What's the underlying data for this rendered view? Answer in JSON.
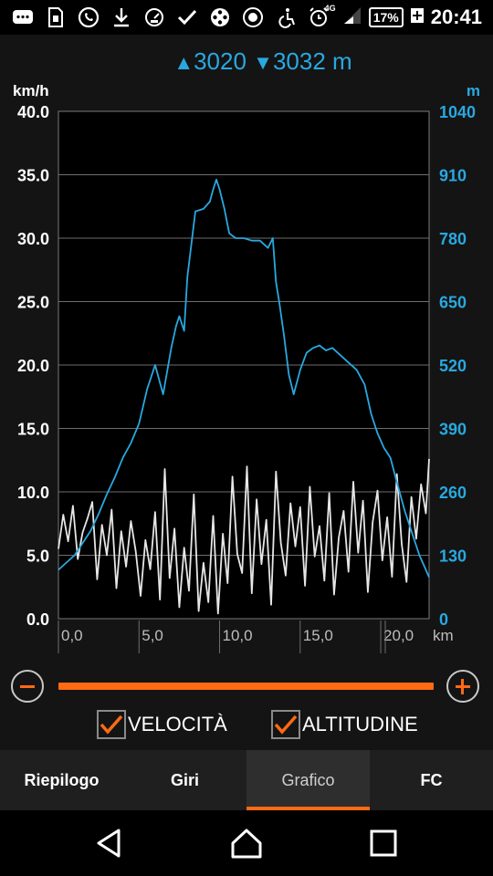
{
  "status_bar": {
    "notification_icons": [
      "chat-icon",
      "sim-icon",
      "whatsapp-icon",
      "download-icon",
      "speedometer-icon",
      "check-icon",
      "film-reel-icon",
      "gauge-icon",
      "accessibility-icon",
      "alarm-icon"
    ],
    "network": "4G",
    "battery": "17%",
    "time": "20:41"
  },
  "header": {
    "ascent_symbol": "▲",
    "ascent": "3020",
    "descent_symbol": "▼",
    "descent": "3032 m"
  },
  "colors": {
    "speed": "#e6e6e6",
    "altitude": "#29a8e0",
    "accent": "#ff6a13",
    "plot_bg": "#000000"
  },
  "chart_data": {
    "type": "line",
    "left_axis_unit": "km/h",
    "right_axis_unit": "m",
    "x_unit": "km",
    "left_ticks": [
      "0.0",
      "5.0",
      "10.0",
      "15.0",
      "20.0",
      "25.0",
      "30.0",
      "35.0",
      "40.0"
    ],
    "right_ticks": [
      "0",
      "130",
      "260",
      "390",
      "520",
      "650",
      "780",
      "910",
      "1040"
    ],
    "x_ticks": [
      "0,0",
      "5,0",
      "10,0",
      "15,0",
      "20,0"
    ],
    "ylim_left": [
      0,
      40
    ],
    "ylim_right": [
      0,
      1040
    ],
    "xlim": [
      0,
      23
    ],
    "grid": true,
    "series": [
      {
        "name": "VELOCITÀ",
        "axis": "left",
        "x": [
          0.0,
          0.3,
          0.6,
          0.9,
          1.2,
          1.5,
          1.8,
          2.1,
          2.4,
          2.7,
          3.0,
          3.3,
          3.6,
          3.9,
          4.2,
          4.5,
          4.8,
          5.1,
          5.4,
          5.7,
          6.0,
          6.3,
          6.6,
          6.9,
          7.2,
          7.5,
          7.8,
          8.1,
          8.4,
          8.7,
          9.0,
          9.3,
          9.6,
          9.9,
          10.2,
          10.5,
          10.8,
          11.1,
          11.4,
          11.7,
          12.0,
          12.3,
          12.6,
          12.9,
          13.2,
          13.5,
          13.8,
          14.1,
          14.4,
          14.7,
          15.0,
          15.3,
          15.6,
          15.9,
          16.2,
          16.5,
          16.8,
          17.1,
          17.4,
          17.7,
          18.0,
          18.3,
          18.6,
          18.9,
          19.2,
          19.5,
          19.8,
          20.1,
          20.4,
          20.7,
          21.0,
          21.3,
          21.6,
          21.9,
          22.2,
          22.5,
          22.8,
          23.0
        ],
        "values": [
          5.5,
          8.2,
          6.1,
          8.9,
          4.7,
          6.8,
          7.9,
          9.2,
          3.1,
          7.4,
          5.0,
          8.6,
          2.4,
          6.9,
          4.1,
          7.7,
          5.3,
          1.8,
          6.2,
          3.9,
          8.4,
          1.5,
          11.8,
          3.2,
          7.1,
          0.9,
          5.6,
          2.2,
          9.8,
          0.6,
          4.4,
          1.3,
          8.1,
          0.4,
          6.7,
          2.8,
          11.2,
          5.1,
          3.6,
          12.0,
          2.0,
          9.4,
          4.3,
          7.8,
          1.1,
          11.6,
          6.0,
          3.4,
          9.1,
          5.7,
          8.8,
          2.6,
          10.4,
          4.9,
          7.3,
          3.0,
          9.9,
          1.9,
          6.4,
          8.5,
          3.7,
          10.8,
          5.2,
          9.3,
          2.1,
          7.6,
          10.1,
          4.6,
          8.0,
          3.3,
          11.4,
          5.9,
          2.9,
          9.6,
          6.3,
          10.6,
          8.3,
          12.6
        ]
      },
      {
        "name": "ALTITUDINE",
        "axis": "right",
        "x": [
          0.0,
          0.5,
          1.0,
          1.5,
          2.0,
          2.5,
          3.0,
          3.5,
          4.0,
          4.5,
          5.0,
          5.5,
          6.0,
          6.5,
          7.0,
          7.3,
          7.5,
          7.8,
          8.0,
          8.5,
          9.0,
          9.4,
          9.6,
          9.8,
          10.0,
          10.3,
          10.6,
          11.0,
          11.5,
          12.0,
          12.5,
          13.0,
          13.3,
          13.5,
          13.7,
          14.0,
          14.3,
          14.6,
          15.0,
          15.4,
          15.8,
          16.2,
          16.6,
          17.0,
          17.5,
          18.0,
          18.5,
          19.0,
          19.4,
          19.8,
          20.2,
          20.6,
          21.0,
          21.5,
          22.0,
          22.4,
          22.8,
          23.0
        ],
        "values": [
          100,
          115,
          130,
          155,
          180,
          215,
          255,
          290,
          330,
          360,
          400,
          470,
          520,
          460,
          555,
          600,
          620,
          590,
          700,
          835,
          840,
          855,
          880,
          900,
          880,
          840,
          790,
          780,
          780,
          775,
          775,
          760,
          780,
          690,
          650,
          580,
          500,
          460,
          510,
          545,
          555,
          560,
          550,
          555,
          540,
          525,
          510,
          480,
          420,
          380,
          350,
          330,
          280,
          220,
          170,
          130,
          100,
          85
        ]
      }
    ]
  },
  "slider": {
    "minus_symbol": "−",
    "plus_symbol": "+"
  },
  "checkboxes": [
    {
      "label": "VELOCITÀ",
      "checked": true
    },
    {
      "label": "ALTITUDINE",
      "checked": true
    }
  ],
  "tabs": [
    {
      "label": "Riepilogo",
      "active": false
    },
    {
      "label": "Giri",
      "active": false
    },
    {
      "label": "Grafico",
      "active": true
    },
    {
      "label": "FC",
      "active": false
    }
  ]
}
